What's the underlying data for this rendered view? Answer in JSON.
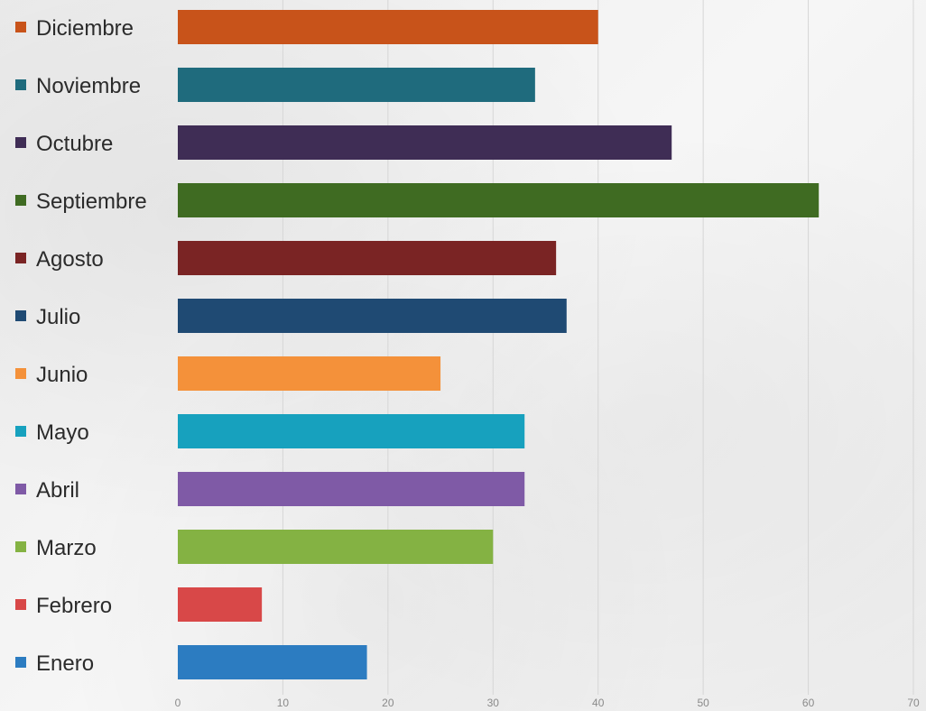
{
  "chart_data": {
    "type": "bar",
    "orientation": "horizontal",
    "title": "",
    "xlabel": "",
    "ylabel": "",
    "categories": [
      "Diciembre",
      "Noviembre",
      "Octubre",
      "Septiembre",
      "Agosto",
      "Julio",
      "Junio",
      "Mayo",
      "Abril",
      "Marzo",
      "Febrero",
      "Enero"
    ],
    "values": [
      40,
      34,
      47,
      61,
      36,
      37,
      25,
      33,
      33,
      30,
      8,
      18
    ],
    "colors": [
      "#c8531a",
      "#1f6b7d",
      "#3f2d55",
      "#3f6b22",
      "#7a2424",
      "#1f4a73",
      "#f4913a",
      "#17a1be",
      "#7f5aa6",
      "#84b243",
      "#d84848",
      "#2c7cc1"
    ],
    "xlim": [
      0,
      70
    ],
    "xticks": [
      0,
      10,
      20,
      30,
      40,
      50,
      60,
      70
    ],
    "grid": true,
    "legend": "none"
  }
}
